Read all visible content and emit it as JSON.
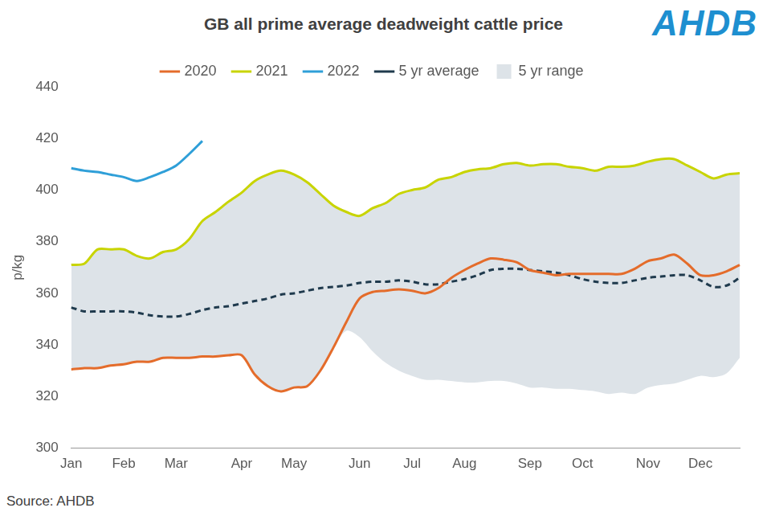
{
  "chart_data": {
    "type": "line",
    "title": "GB all prime average deadweight cattle price",
    "y_label": "p/kg",
    "source": "Source: AHDB",
    "logo": "AHDB",
    "legend": "top",
    "grid": false,
    "ylim": [
      300,
      440
    ],
    "yticks": [
      300,
      320,
      340,
      360,
      380,
      400,
      420,
      440
    ],
    "categories": [
      "Jan",
      null,
      null,
      null,
      "Feb",
      null,
      null,
      null,
      "Mar",
      null,
      null,
      null,
      null,
      "Apr",
      null,
      null,
      null,
      "May",
      null,
      null,
      null,
      null,
      "Jun",
      null,
      null,
      null,
      "Jul",
      null,
      null,
      null,
      "Aug",
      null,
      null,
      null,
      null,
      "Sep",
      null,
      null,
      null,
      "Oct",
      null,
      null,
      null,
      null,
      "Nov",
      null,
      null,
      null,
      "Dec",
      null,
      null,
      null
    ],
    "series": [
      {
        "name": "5 yr range",
        "type": "area",
        "color": "#dde3e8",
        "values": [
          [
            330.5,
            371
          ],
          [
            331,
            371.5
          ],
          [
            331,
            377
          ],
          [
            332,
            377
          ],
          [
            332.5,
            377
          ],
          [
            333.5,
            374.5
          ],
          [
            333.5,
            373.5
          ],
          [
            335,
            376
          ],
          [
            335,
            377
          ],
          [
            335,
            381
          ],
          [
            335.5,
            388
          ],
          [
            335.5,
            391.5
          ],
          [
            336,
            395.5
          ],
          [
            336,
            399
          ],
          [
            328.5,
            403.5
          ],
          [
            324,
            406
          ],
          [
            322,
            407.5
          ],
          [
            323.5,
            406
          ],
          [
            324,
            403
          ],
          [
            330,
            398.5
          ],
          [
            339,
            394
          ],
          [
            345.5,
            391.5
          ],
          [
            343,
            390
          ],
          [
            337.5,
            393
          ],
          [
            333,
            395
          ],
          [
            330,
            398.5
          ],
          [
            328,
            400
          ],
          [
            326.5,
            401
          ],
          [
            326.5,
            404
          ],
          [
            326,
            405
          ],
          [
            325.5,
            407
          ],
          [
            325.5,
            408
          ],
          [
            326,
            408.5
          ],
          [
            326,
            410
          ],
          [
            325,
            410.5
          ],
          [
            323.5,
            409.5
          ],
          [
            323.5,
            410
          ],
          [
            323,
            410
          ],
          [
            323,
            409
          ],
          [
            322.5,
            408.5
          ],
          [
            322,
            407.5
          ],
          [
            321,
            409
          ],
          [
            321.5,
            409
          ],
          [
            321,
            409.5
          ],
          [
            323.5,
            411
          ],
          [
            324.5,
            412
          ],
          [
            325,
            412
          ],
          [
            326.5,
            409.5
          ],
          [
            328,
            407
          ],
          [
            327.5,
            404.5
          ],
          [
            329,
            406
          ],
          [
            335,
            406
          ]
        ]
      },
      {
        "name": "2020",
        "color": "#e46c2b",
        "line_style": "solid",
        "values": [
          330.5,
          331,
          331,
          332,
          332.5,
          333.5,
          333.5,
          335,
          335,
          335,
          335.5,
          335.5,
          336,
          336,
          328.5,
          324,
          322,
          323.5,
          324,
          330,
          339,
          349,
          358,
          360.5,
          361,
          361.5,
          361,
          360,
          362,
          366,
          369,
          371.5,
          373.5,
          373,
          372,
          369,
          368,
          367,
          367.5,
          367.5,
          367.5,
          367.5,
          367.5,
          369.5,
          372.5,
          373.5,
          375,
          371.5,
          367,
          367,
          368.5,
          371
        ]
      },
      {
        "name": "2021",
        "color": "#c8d400",
        "line_style": "solid",
        "values": [
          371,
          371.5,
          377,
          377,
          377,
          374.5,
          373.5,
          376,
          377,
          381,
          388,
          391.5,
          395.5,
          399,
          403.5,
          406,
          407.5,
          406,
          403,
          398.5,
          394,
          391.5,
          390,
          393,
          395,
          398.5,
          400,
          401,
          404,
          405,
          407,
          408,
          408.5,
          410,
          410.5,
          409.5,
          410,
          410,
          409,
          408.5,
          407.5,
          409,
          409,
          409.5,
          411,
          412,
          412,
          409.5,
          407,
          404.5,
          406,
          406.5
        ]
      },
      {
        "name": "2022",
        "color": "#2f9fd8",
        "line_style": "solid",
        "values": [
          408.5,
          407.5,
          407,
          406,
          405,
          403.5,
          405,
          407,
          409.5,
          414,
          419,
          null,
          null,
          null,
          null,
          null,
          null,
          null,
          null,
          null,
          null,
          null,
          null,
          null,
          null,
          null,
          null,
          null,
          null,
          null,
          null,
          null,
          null,
          null,
          null,
          null,
          null,
          null,
          null,
          null,
          null,
          null,
          null,
          null,
          null,
          null,
          null,
          null,
          null,
          null,
          null,
          null
        ]
      },
      {
        "name": "5 yr average",
        "color": "#1f3a4d",
        "line_style": "dashed",
        "values": [
          354.5,
          353,
          353,
          353,
          353,
          352.5,
          351.5,
          351,
          351,
          352,
          353.5,
          354.5,
          355,
          356,
          357,
          358,
          359.5,
          360,
          361,
          362,
          362.5,
          363,
          364,
          364.5,
          364.5,
          365,
          364.5,
          363.5,
          363.5,
          364.5,
          365.5,
          367,
          369,
          369.5,
          369.5,
          369,
          368.5,
          368,
          367,
          365.5,
          364.5,
          364,
          364,
          365,
          366,
          366.5,
          367,
          367,
          365,
          362.5,
          363,
          366
        ]
      }
    ]
  }
}
